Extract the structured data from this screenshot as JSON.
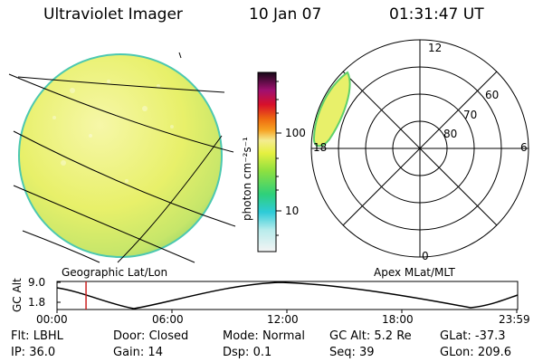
{
  "header": {
    "title": "Ultraviolet Imager",
    "date": "10 Jan 07",
    "time": "01:31:47 UT"
  },
  "colorbar": {
    "unit_label": "photon cm⁻²s⁻¹",
    "ticks": [
      "100",
      "10"
    ]
  },
  "geo_panel": {
    "label": "Geographic Lat/Lon"
  },
  "polar_panel": {
    "label": "Apex MLat/MLT",
    "mlt_labels": [
      "12",
      "18",
      "6",
      "0"
    ],
    "lat_labels": [
      "60",
      "70",
      "80"
    ]
  },
  "altitude_plot": {
    "ylabel": "GC Alt",
    "yticks": [
      "9.0",
      "1.8"
    ],
    "xticks": [
      "00:00",
      "06:00",
      "12:00",
      "18:00",
      "23:59"
    ],
    "current_time_fraction": 0.063
  },
  "info": {
    "row1": [
      {
        "key": "Flt:",
        "value": "LBHL"
      },
      {
        "key": "Door:",
        "value": "Closed"
      },
      {
        "key": "Mode:",
        "value": "Normal"
      },
      {
        "key": "GC Alt:",
        "value": "5.2 Re"
      },
      {
        "key": "GLat:",
        "value": "-37.3"
      }
    ],
    "row2": [
      {
        "key": "IP:",
        "value": "36.0"
      },
      {
        "key": "Gain:",
        "value": "14"
      },
      {
        "key": "Dsp:",
        "value": "0.1"
      },
      {
        "key": "Seq:",
        "value": "39"
      },
      {
        "key": "GLon:",
        "value": "209.6"
      }
    ]
  },
  "colors": {
    "disk_main": "#e8f06a",
    "disk_edge": "#7ed06a",
    "time_marker": "#cc2222"
  }
}
